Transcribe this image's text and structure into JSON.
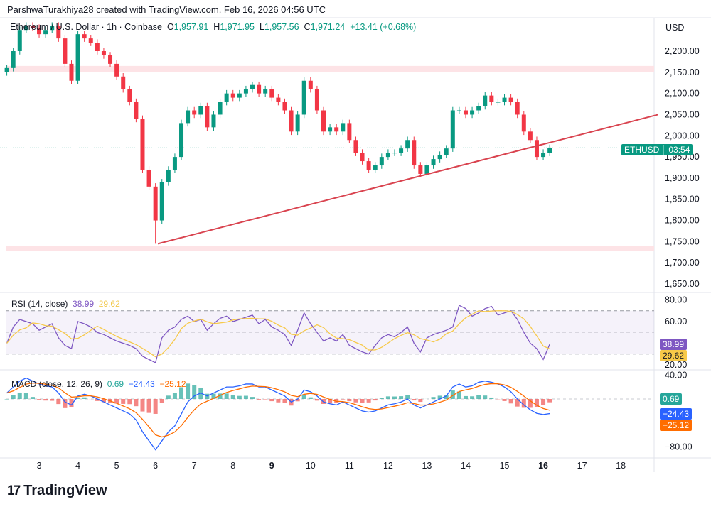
{
  "caption": "ParshwaTurakhiya28 created with TradingView.com, Feb 16, 2026 04:56 UTC",
  "legend": {
    "symbol": "Ethereum / U.S. Dollar · 1h · Coinbase",
    "o_label": "O",
    "o": "1,957.91",
    "h_label": "H",
    "h": "1,971.95",
    "l_label": "L",
    "l": "1,957.56",
    "c_label": "C",
    "c": "1,971.24",
    "change": "+13.41 (+0.68%)"
  },
  "currency": "USD",
  "price_tag": {
    "symbol": "ETHUSD",
    "countdown": "03:54"
  },
  "rsi": {
    "label": "RSI (14, close)",
    "value": "38.99",
    "ma": "29.62",
    "axis": [
      "80.00",
      "60.00",
      "20.00"
    ]
  },
  "macd": {
    "label": "MACD (close, 12, 26, 9)",
    "hist": "0.69",
    "macd": "−24.43",
    "signal": "−25.12",
    "axis": [
      "40.00",
      "−80.00"
    ]
  },
  "brand": "TradingView",
  "colors": {
    "up": "#089981",
    "down": "#f23645",
    "rsi": "#7e57c2",
    "rsi_ma": "#f7c948",
    "macd": "#2962ff",
    "signal": "#ff6d00",
    "trendline": "#d9434f",
    "zone": "#fde3e6"
  },
  "chart_data": [
    {
      "type": "candlestick",
      "title": "Ethereum / U.S. Dollar · 1h · Coinbase",
      "x_ticks": [
        "3",
        "4",
        "5",
        "6",
        "7",
        "8",
        "9",
        "10",
        "11",
        "12",
        "13",
        "14",
        "15",
        "16",
        "17",
        "18"
      ],
      "y_ticks": [
        "2,200.00",
        "2,150.00",
        "2,100.00",
        "2,050.00",
        "2,000.00",
        "1,950.00",
        "1,900.00",
        "1,850.00",
        "1,800.00",
        "1,750.00",
        "1,700.00",
        "1,650.00"
      ],
      "ylim": [
        1630,
        2270
      ],
      "start": "2026-02-02T04:00",
      "step_hours": 4,
      "close": [
        2160,
        2200,
        2250,
        2260,
        2255,
        2240,
        2250,
        2260,
        2230,
        2170,
        2130,
        2240,
        2230,
        2220,
        2200,
        2190,
        2170,
        2140,
        2110,
        2080,
        2040,
        1920,
        1880,
        1800,
        1890,
        1920,
        1950,
        2030,
        2060,
        2050,
        2070,
        2020,
        2050,
        2080,
        2100,
        2090,
        2100,
        2110,
        2120,
        2100,
        2110,
        2090,
        2080,
        2060,
        2010,
        2050,
        2130,
        2110,
        2060,
        2010,
        2020,
        2010,
        2030,
        1990,
        1960,
        1940,
        1920,
        1930,
        1950,
        1960,
        1960,
        1970,
        1990,
        1930,
        1910,
        1930,
        1945,
        1955,
        1970,
        2060,
        2060,
        2050,
        2060,
        2070,
        2095,
        2080,
        2080,
        2090,
        2080,
        2050,
        2010,
        1990,
        1950,
        1960,
        1971.24
      ],
      "low_of_range": 1745,
      "last_price": 1971.24,
      "zones": [
        [
          2150,
          2165
        ],
        [
          1728,
          1740
        ]
      ],
      "trendline": [
        [
          "2026-02-06T01:30",
          1745
        ],
        [
          "2026-02-18T23:00",
          2050
        ]
      ]
    },
    {
      "type": "line",
      "title": "RSI (14, close)",
      "ylim": [
        15,
        85
      ],
      "bands": [
        30,
        70
      ],
      "values": [
        40,
        55,
        62,
        60,
        58,
        52,
        55,
        58,
        45,
        38,
        35,
        60,
        58,
        55,
        50,
        48,
        45,
        42,
        40,
        38,
        35,
        28,
        25,
        22,
        45,
        52,
        55,
        62,
        65,
        60,
        62,
        52,
        58,
        63,
        65,
        60,
        62,
        64,
        66,
        58,
        62,
        55,
        52,
        48,
        38,
        52,
        68,
        58,
        50,
        42,
        45,
        42,
        48,
        38,
        35,
        32,
        30,
        38,
        45,
        48,
        46,
        50,
        55,
        40,
        32,
        45,
        48,
        50,
        52,
        55,
        75,
        72,
        65,
        68,
        72,
        74,
        66,
        68,
        70,
        62,
        50,
        40,
        35,
        25,
        38.99
      ]
    },
    {
      "type": "line",
      "title": "MACD (close, 12, 26, 9)",
      "ylim": [
        -95,
        45
      ],
      "macd": [
        10,
        20,
        30,
        35,
        30,
        25,
        22,
        20,
        10,
        -5,
        -10,
        5,
        8,
        5,
        0,
        -5,
        -10,
        -15,
        -20,
        -25,
        -35,
        -55,
        -70,
        -85,
        -70,
        -55,
        -45,
        -25,
        -5,
        5,
        10,
        5,
        10,
        15,
        20,
        20,
        22,
        25,
        25,
        20,
        20,
        15,
        10,
        5,
        -5,
        0,
        15,
        12,
        5,
        -5,
        -8,
        -10,
        -5,
        -10,
        -15,
        -20,
        -22,
        -20,
        -15,
        -10,
        -8,
        -5,
        0,
        -10,
        -15,
        -10,
        -5,
        0,
        5,
        20,
        25,
        20,
        22,
        28,
        30,
        28,
        25,
        20,
        12,
        0,
        -10,
        -18,
        -24,
        -26,
        -24.43
      ]
    }
  ]
}
